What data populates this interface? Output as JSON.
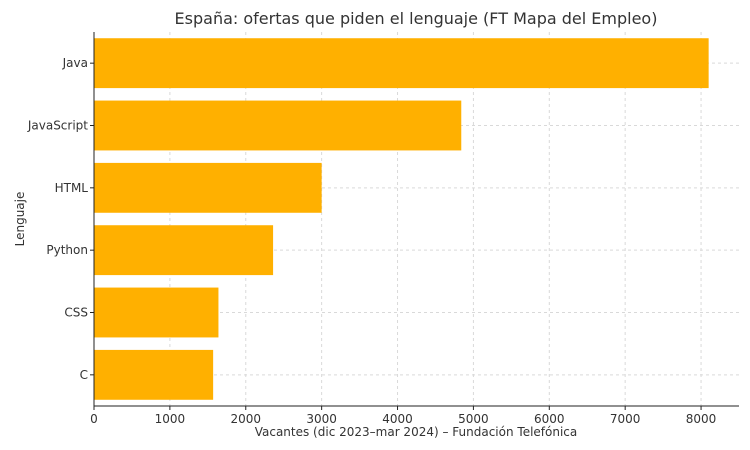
{
  "chart_data": {
    "type": "bar",
    "orientation": "horizontal",
    "title": "España: ofertas que piden el lenguaje (FT Mapa del Empleo)",
    "xlabel": "Vacantes (dic 2023–mar 2024) – Fundación Telefónica",
    "ylabel": "Lenguaje",
    "categories": [
      "Java",
      "JavaScript",
      "HTML",
      "Python",
      "CSS",
      "C"
    ],
    "values": [
      8100,
      4840,
      3000,
      2360,
      1640,
      1570
    ],
    "xlim": [
      0,
      8500
    ],
    "xticks": [
      0,
      1000,
      2000,
      3000,
      4000,
      5000,
      6000,
      7000,
      8000
    ],
    "grid": true,
    "bar_color": "#FFB000"
  }
}
